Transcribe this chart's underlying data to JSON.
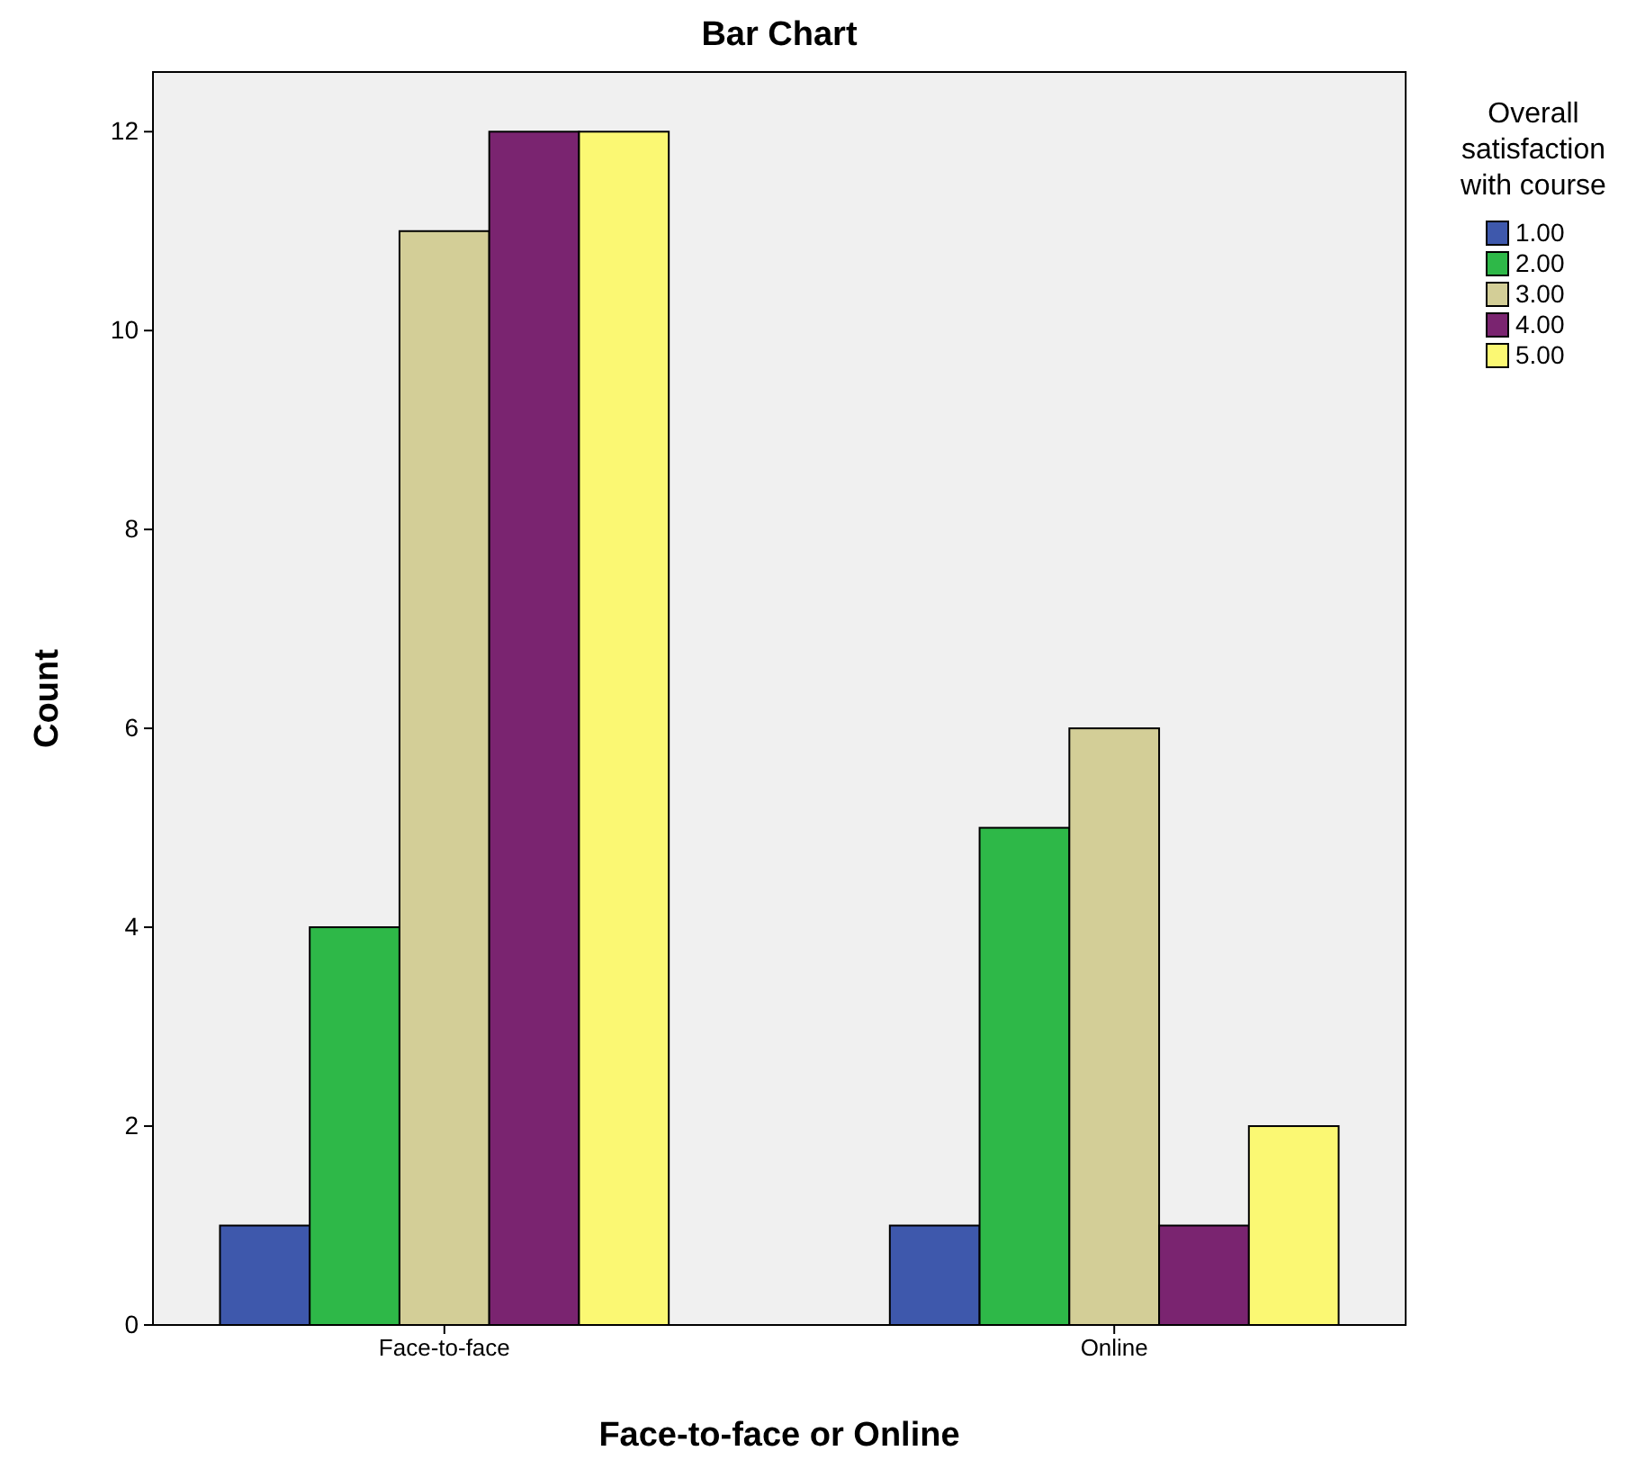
{
  "chart_data": {
    "type": "bar",
    "title": "Bar Chart",
    "xlabel": "Face-to-face or Online",
    "ylabel": "Count",
    "legend_title": "Overall satisfaction with course",
    "categories": [
      "Face-to-face",
      "Online"
    ],
    "series": [
      {
        "name": "1.00",
        "color": "#3e58ac",
        "values": [
          1,
          1
        ]
      },
      {
        "name": "2.00",
        "color": "#2eb848",
        "values": [
          4,
          5
        ]
      },
      {
        "name": "3.00",
        "color": "#d3ce97",
        "values": [
          11,
          6
        ]
      },
      {
        "name": "4.00",
        "color": "#7a2470",
        "values": [
          12,
          1
        ]
      },
      {
        "name": "5.00",
        "color": "#fbf873",
        "values": [
          12,
          2
        ]
      }
    ],
    "ylim": [
      0,
      12.6
    ],
    "yticks": [
      0,
      2,
      4,
      6,
      8,
      10,
      12
    ],
    "grid": false,
    "legend": "top right"
  }
}
